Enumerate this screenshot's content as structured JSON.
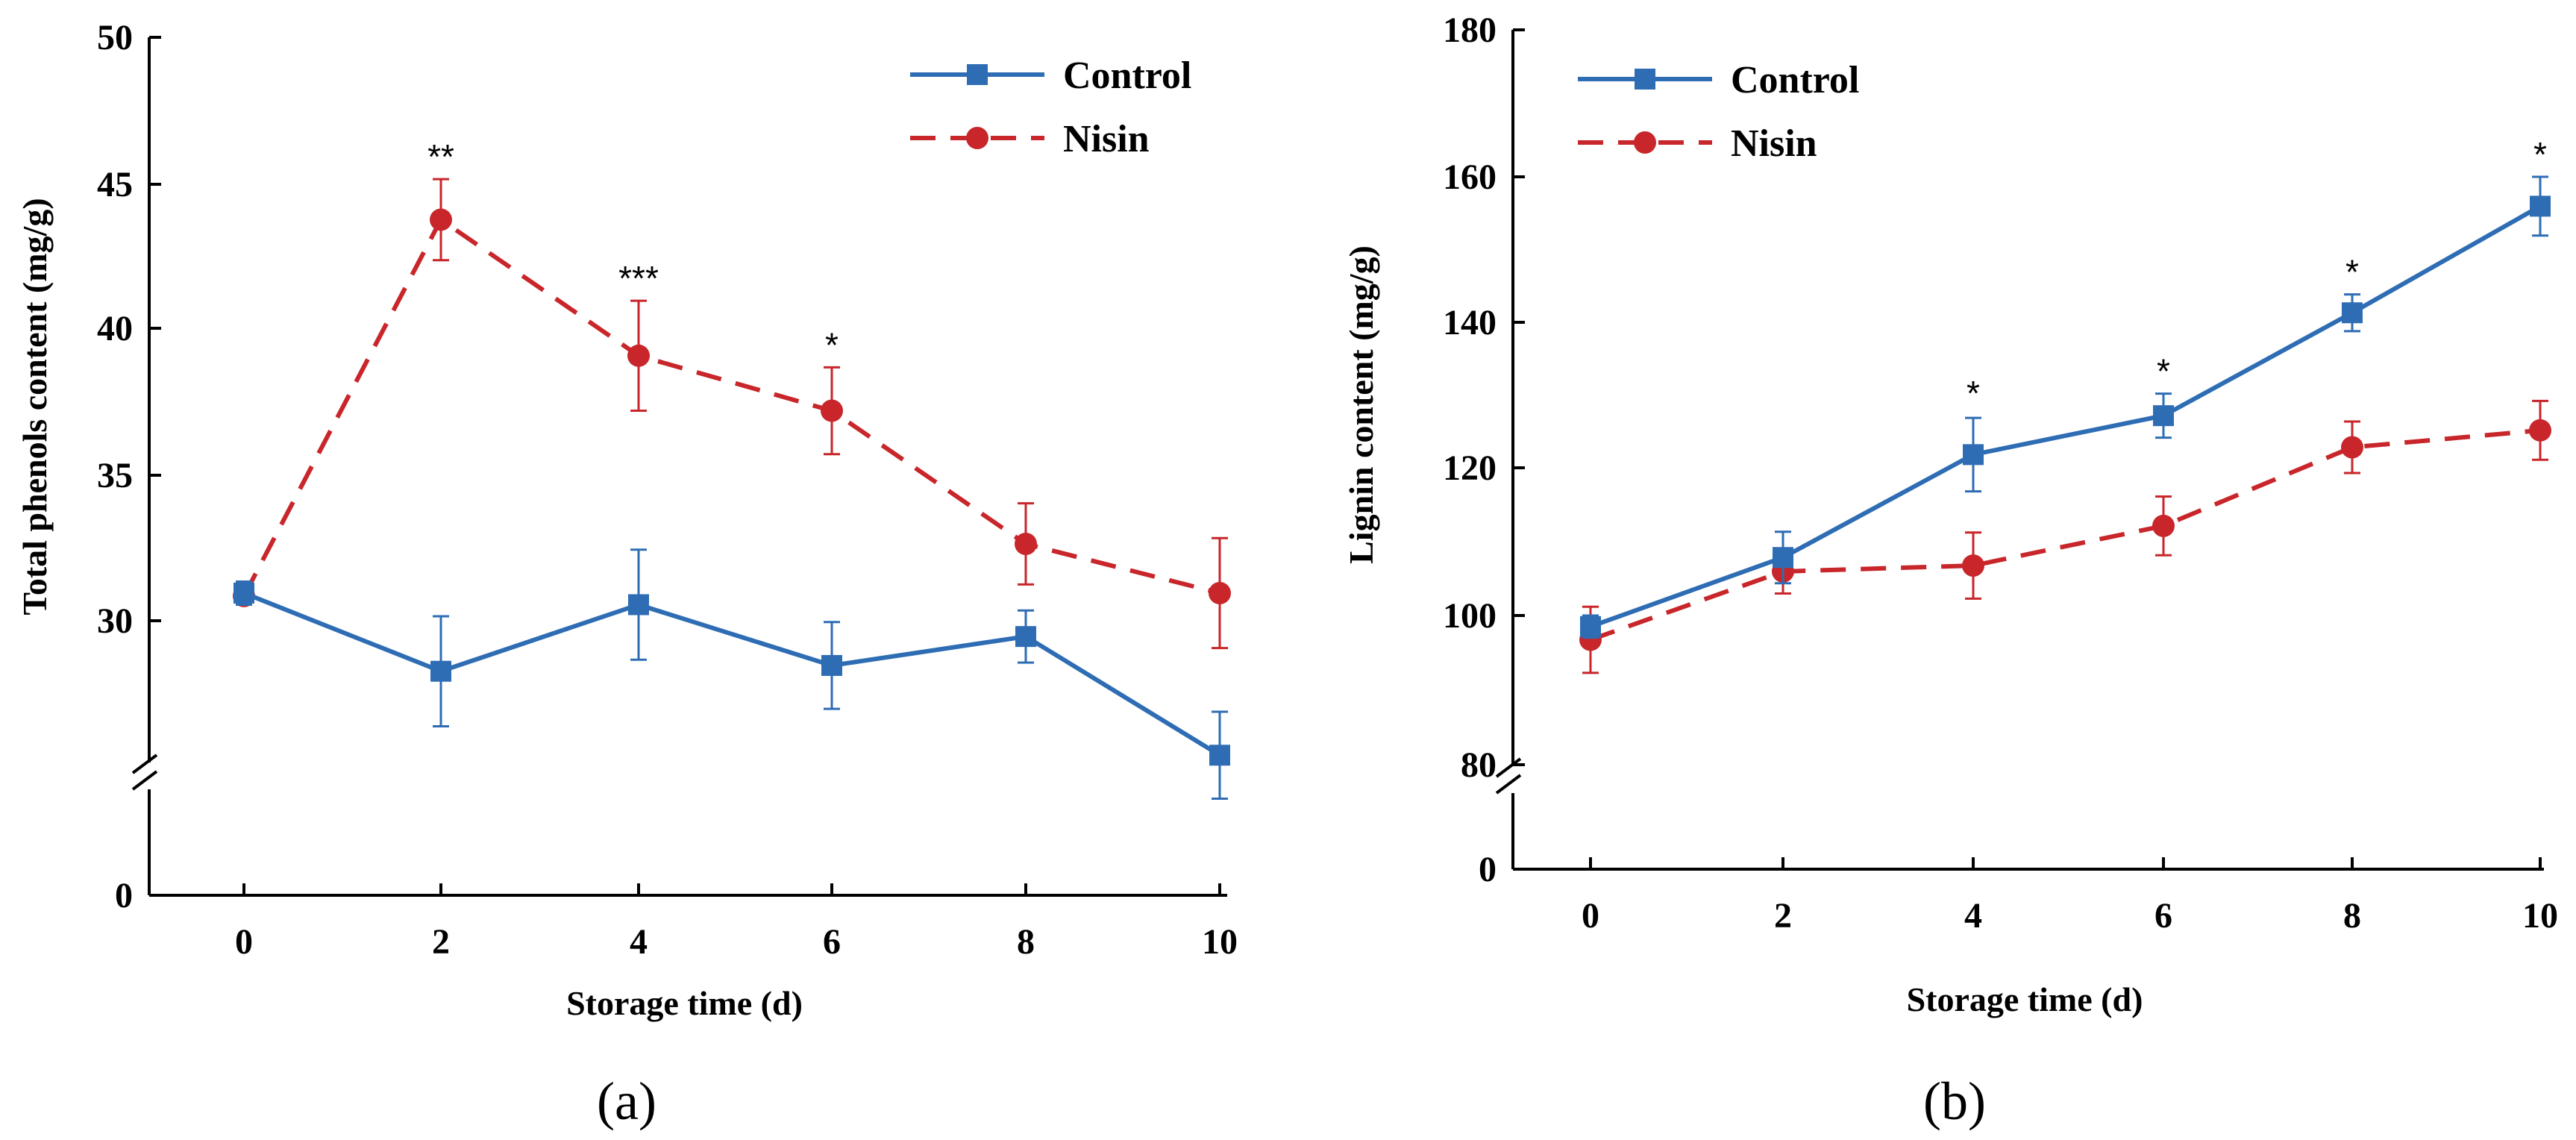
{
  "colors": {
    "control": "#2E6DB4",
    "nisin": "#C8262A",
    "axis": "#000000"
  },
  "chart_data": [
    {
      "type": "line",
      "caption": "(a)",
      "xlabel": "Storage time (d)",
      "ylabel": "Total phenols content (mg/g)",
      "x": [
        0,
        2,
        4,
        6,
        8,
        10
      ],
      "x_tick_labels": [
        "0",
        "2",
        "4",
        "6",
        "8",
        "10"
      ],
      "y_tick_labels": [
        "50",
        "45",
        "40",
        "35",
        "30",
        "0"
      ],
      "ylim_upper": [
        25,
        50
      ],
      "axis_break": true,
      "legend_position": "top-right",
      "series": [
        {
          "name": "Control",
          "marker": "square",
          "line": "solid",
          "values": [
            30.8,
            28.1,
            30.4,
            28.3,
            29.3,
            25.2
          ],
          "errors": [
            0.4,
            1.9,
            1.9,
            1.5,
            0.9,
            1.5
          ]
        },
        {
          "name": "Nisin",
          "marker": "circle",
          "line": "dashed",
          "values": [
            30.7,
            43.7,
            39.0,
            37.1,
            32.5,
            30.8
          ],
          "errors": [
            0.3,
            1.4,
            1.9,
            1.5,
            1.4,
            1.9
          ]
        }
      ],
      "annotations": [
        {
          "x": 2,
          "y": 45.1,
          "text": "**"
        },
        {
          "x": 4,
          "y": 40.9,
          "text": "***"
        },
        {
          "x": 6,
          "y": 38.6,
          "text": "*"
        }
      ]
    },
    {
      "type": "line",
      "caption": "(b)",
      "xlabel": "Storage time (d)",
      "ylabel": "Lignin content (mg/g)",
      "x": [
        0,
        2,
        4,
        6,
        8,
        10
      ],
      "x_tick_labels": [
        "0",
        "2",
        "4",
        "6",
        "8",
        "10"
      ],
      "y_tick_labels": [
        "180",
        "160",
        "140",
        "120",
        "100",
        "80",
        "0"
      ],
      "ylim_upper": [
        80,
        180
      ],
      "axis_break": true,
      "legend_position": "top-left",
      "series": [
        {
          "name": "Control",
          "marker": "square",
          "line": "solid",
          "values": [
            98.8,
            108.2,
            122.2,
            127.5,
            141.5,
            156.0
          ],
          "errors": [
            1.5,
            3.5,
            5.0,
            3.0,
            2.5,
            4.0
          ]
        },
        {
          "name": "Nisin",
          "marker": "circle",
          "line": "dashed",
          "values": [
            97.0,
            106.3,
            107.1,
            112.5,
            123.2,
            125.5
          ],
          "errors": [
            4.5,
            3.0,
            4.5,
            4.0,
            3.5,
            4.0
          ]
        }
      ],
      "annotations": [
        {
          "x": 4,
          "y": 127.5,
          "text": "*"
        },
        {
          "x": 6,
          "y": 130.5,
          "text": "*"
        },
        {
          "x": 8,
          "y": 144.0,
          "text": "*"
        },
        {
          "x": 10,
          "y": 160.0,
          "text": "*"
        }
      ]
    }
  ]
}
